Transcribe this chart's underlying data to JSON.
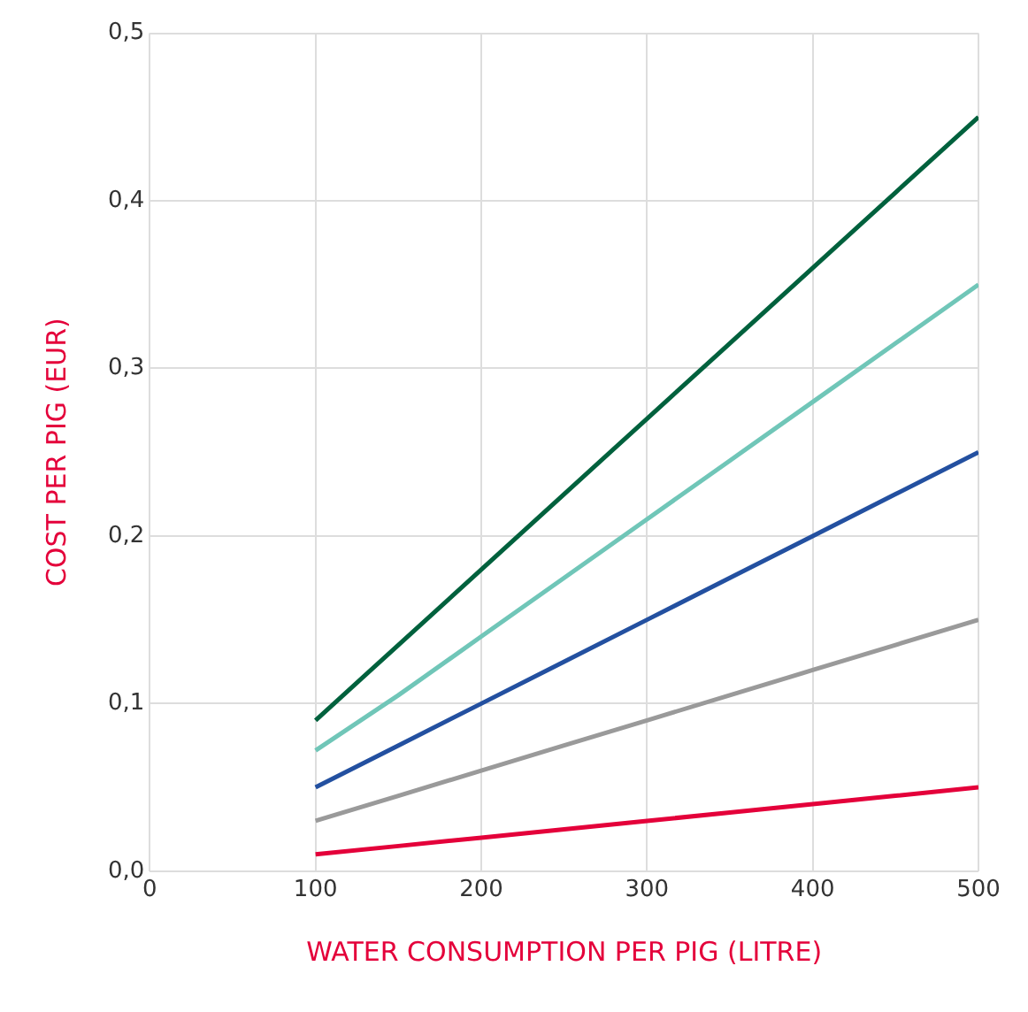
{
  "chart_data": {
    "type": "line",
    "xlabel": "WATER CONSUMPTION PER PIG (LITRE)",
    "ylabel": "COST PER PIG (EUR)",
    "x": [
      100,
      150,
      200,
      250,
      300,
      350,
      400,
      450,
      500
    ],
    "series": [
      {
        "color": "#00613d",
        "values": [
          0.09,
          0.135,
          0.18,
          0.225,
          0.27,
          0.315,
          0.36,
          0.405,
          0.45
        ]
      },
      {
        "color": "#70c6b8",
        "values": [
          0.072,
          0.105,
          0.14,
          0.175,
          0.21,
          0.245,
          0.28,
          0.315,
          0.35
        ]
      },
      {
        "color": "#2350a0",
        "values": [
          0.05,
          0.075,
          0.1,
          0.125,
          0.15,
          0.175,
          0.2,
          0.225,
          0.25
        ]
      },
      {
        "color": "#9a9a9a",
        "values": [
          0.03,
          0.045,
          0.06,
          0.075,
          0.09,
          0.105,
          0.12,
          0.135,
          0.15
        ]
      },
      {
        "color": "#e4003a",
        "values": [
          0.01,
          0.015,
          0.02,
          0.025,
          0.03,
          0.035,
          0.04,
          0.045,
          0.05
        ]
      }
    ],
    "xlim": [
      0,
      500
    ],
    "xticks": [
      0,
      100,
      200,
      300,
      400,
      500
    ],
    "ylim": [
      0,
      0.5
    ],
    "yticks": [
      {
        "value": 0,
        "label": "0,0"
      },
      {
        "value": 0.1,
        "label": "0,1"
      },
      {
        "value": 0.2,
        "label": "0,2"
      },
      {
        "value": 0.3,
        "label": "0,3"
      },
      {
        "value": 0.4,
        "label": "0,4"
      },
      {
        "value": 0.5,
        "label": "0,5"
      }
    ],
    "grid": true,
    "legend": false,
    "marker": "none",
    "line_style": "solid"
  }
}
